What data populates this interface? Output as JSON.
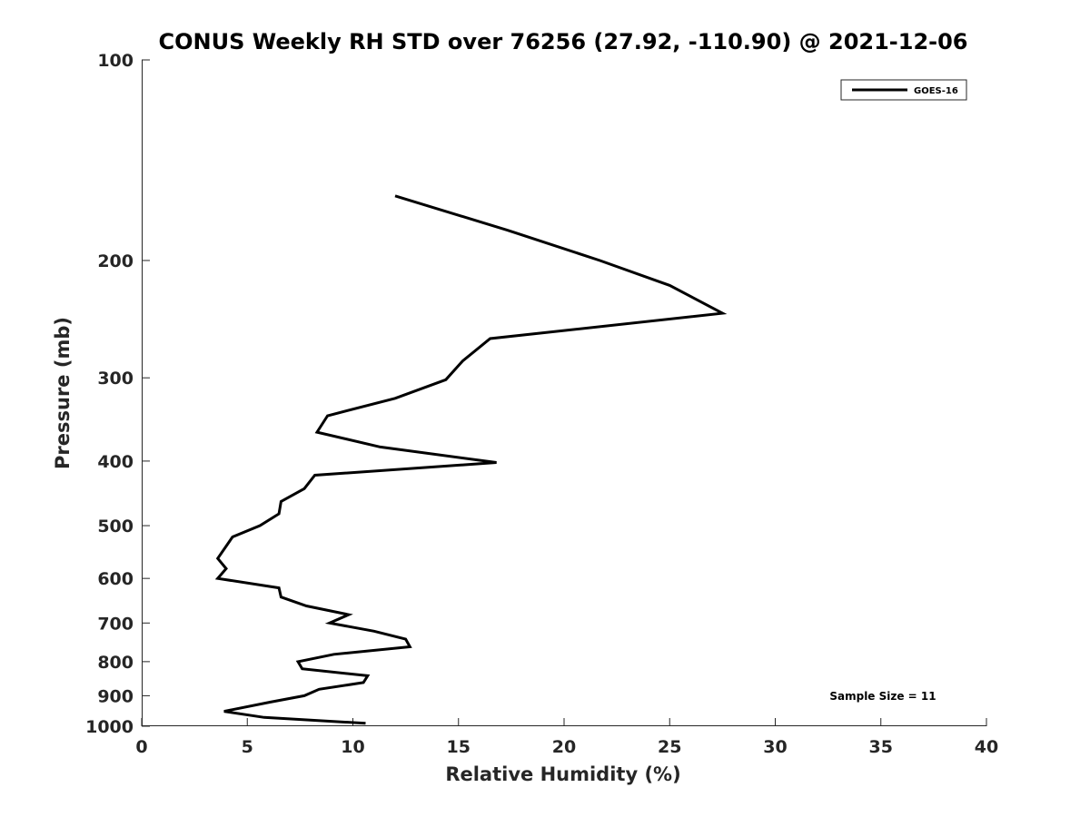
{
  "chart_data": {
    "type": "line",
    "title": "CONUS Weekly RH STD over 76256 (27.92, -110.90) @ 2021-12-06",
    "xlabel": "Relative Humidity (%)",
    "ylabel": "Pressure (mb)",
    "xlim": [
      0,
      40
    ],
    "ylim": [
      100,
      1000
    ],
    "yscale": "log",
    "y_reversed": true,
    "xticks": [
      0,
      5,
      10,
      15,
      20,
      25,
      30,
      35,
      40
    ],
    "yticks": [
      100,
      200,
      300,
      400,
      500,
      600,
      700,
      800,
      900,
      1000
    ],
    "xtick_labels": [
      "0",
      "5",
      "10",
      "15",
      "20",
      "25",
      "30",
      "35",
      "40"
    ],
    "ytick_labels": [
      "100",
      "200",
      "300",
      "400",
      "500",
      "600",
      "700",
      "800",
      "900",
      "1000"
    ],
    "grid": false,
    "legend_position": "top-right",
    "annotation": "Sample Size = 11",
    "series": [
      {
        "name": "GOES-16",
        "color": "#000000",
        "x": [
          12.0,
          17.3,
          21.7,
          25.0,
          27.5,
          16.5,
          15.2,
          14.4,
          12.0,
          8.8,
          8.3,
          11.3,
          16.8,
          8.2,
          7.7,
          6.6,
          6.5,
          5.6,
          4.3,
          3.6,
          4.0,
          3.6,
          6.5,
          6.6,
          7.8,
          9.8,
          8.9,
          11.0,
          12.5,
          12.7,
          9.1,
          7.4,
          7.6,
          10.7,
          10.5,
          8.4,
          7.7,
          6.1,
          3.9,
          5.8,
          10.6
        ],
        "y": [
          160,
          180,
          200,
          218,
          240,
          262,
          283,
          302,
          322,
          342,
          362,
          381,
          402,
          420,
          440,
          460,
          480,
          500,
          520,
          560,
          580,
          600,
          620,
          640,
          660,
          680,
          700,
          720,
          740,
          760,
          780,
          800,
          820,
          840,
          860,
          880,
          900,
          920,
          950,
          970,
          990
        ]
      }
    ]
  }
}
